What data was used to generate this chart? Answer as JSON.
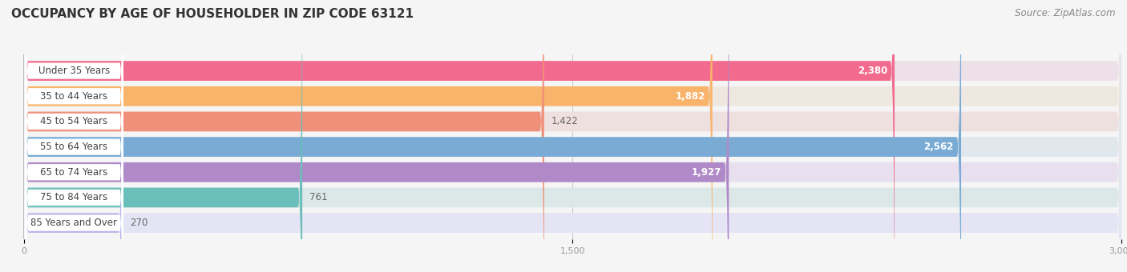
{
  "title": "OCCUPANCY BY AGE OF HOUSEHOLDER IN ZIP CODE 63121",
  "source": "Source: ZipAtlas.com",
  "categories": [
    "Under 35 Years",
    "35 to 44 Years",
    "45 to 54 Years",
    "55 to 64 Years",
    "65 to 74 Years",
    "75 to 84 Years",
    "85 Years and Over"
  ],
  "values": [
    2380,
    1882,
    1422,
    2562,
    1927,
    761,
    270
  ],
  "bar_colors": [
    "#F26A8D",
    "#F9B46C",
    "#F0907A",
    "#7AABD4",
    "#B08AC8",
    "#6BBFBA",
    "#B8B8E8"
  ],
  "bar_bg_colors": [
    "#EEE0E8",
    "#EEE8E0",
    "#EEE0DE",
    "#E0E8EE",
    "#E8E0EE",
    "#DCE8E8",
    "#E4E4F4"
  ],
  "label_pill_color": "#ffffff",
  "xlim_min": -50,
  "xlim_max": 3000,
  "xticks": [
    0,
    1500,
    3000
  ],
  "value_label_color": [
    "white",
    "white",
    "black",
    "white",
    "white",
    "black",
    "black"
  ],
  "title_fontsize": 11,
  "source_fontsize": 8.5,
  "label_fontsize": 8.5,
  "value_fontsize": 8.5,
  "background_color": "#f5f5f5",
  "bar_area_bg": "#f5f5f5"
}
